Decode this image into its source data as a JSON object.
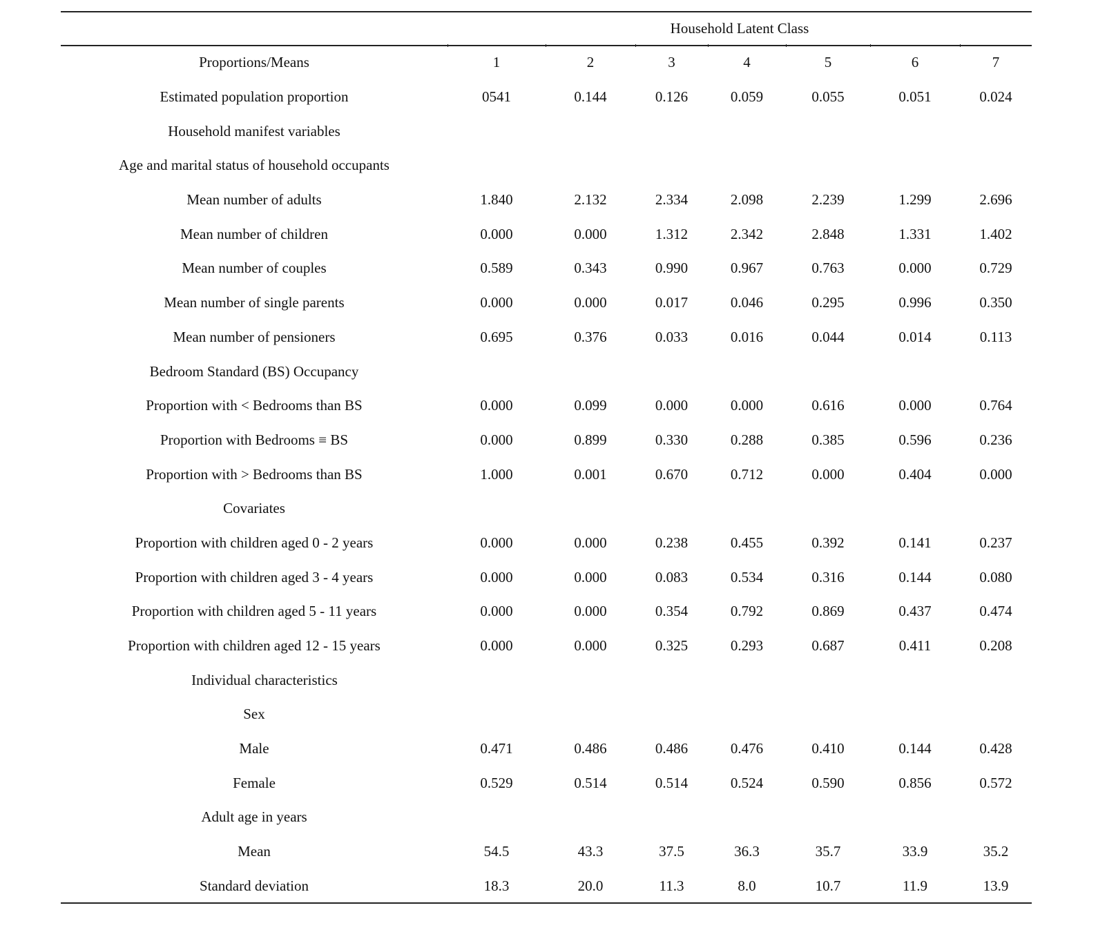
{
  "table": {
    "spanner": "Household Latent Class",
    "rows": [
      {
        "label": "Proportions/Means",
        "values": [
          "1",
          "2",
          "3",
          "4",
          "5",
          "6",
          "7"
        ]
      },
      {
        "label": "Estimated population proportion",
        "values": [
          "0541",
          "0.144",
          "0.126",
          "0.059",
          "0.055",
          "0.051",
          "0.024"
        ]
      },
      {
        "label": "Household manifest variables",
        "values": []
      },
      {
        "label": "Age and marital status of household occupants",
        "values": []
      },
      {
        "label": "Mean number of adults",
        "values": [
          "1.840",
          "2.132",
          "2.334",
          "2.098",
          "2.239",
          "1.299",
          "2.696"
        ]
      },
      {
        "label": "Mean number of children",
        "values": [
          "0.000",
          "0.000",
          "1.312",
          "2.342",
          "2.848",
          "1.331",
          "1.402"
        ]
      },
      {
        "label": "Mean number of couples",
        "values": [
          "0.589",
          "0.343",
          "0.990",
          "0.967",
          "0.763",
          "0.000",
          "0.729"
        ]
      },
      {
        "label": "Mean number of single parents",
        "values": [
          "0.000",
          "0.000",
          "0.017",
          "0.046",
          "0.295",
          "0.996",
          "0.350"
        ]
      },
      {
        "label": "Mean number of pensioners",
        "values": [
          "0.695",
          "0.376",
          "0.033",
          "0.016",
          "0.044",
          "0.014",
          "0.113"
        ]
      },
      {
        "label": "Bedroom Standard (BS) Occupancy",
        "values": []
      },
      {
        "label": "Proportion with < Bedrooms than BS",
        "values": [
          "0.000",
          "0.099",
          "0.000",
          "0.000",
          "0.616",
          "0.000",
          "0.764"
        ]
      },
      {
        "label": "Proportion with Bedrooms ≡ BS",
        "values": [
          "0.000",
          "0.899",
          "0.330",
          "0.288",
          "0.385",
          "0.596",
          "0.236"
        ]
      },
      {
        "label": "Proportion with > Bedrooms than BS",
        "values": [
          "1.000",
          "0.001",
          "0.670",
          "0.712",
          "0.000",
          "0.404",
          "0.000"
        ]
      },
      {
        "label": "Covariates",
        "values": []
      },
      {
        "label": "Proportion with children aged 0 - 2 years",
        "values": [
          "0.000",
          "0.000",
          "0.238",
          "0.455",
          "0.392",
          "0.141",
          "0.237"
        ]
      },
      {
        "label": "Proportion with children aged 3 - 4 years",
        "values": [
          "0.000",
          "0.000",
          "0.083",
          "0.534",
          "0.316",
          "0.144",
          "0.080"
        ]
      },
      {
        "label": "Proportion with children aged 5 - 11 years",
        "values": [
          "0.000",
          "0.000",
          "0.354",
          "0.792",
          "0.869",
          "0.437",
          "0.474"
        ]
      },
      {
        "label": "Proportion with children aged 12 - 15 years",
        "values": [
          "0.000",
          "0.000",
          "0.325",
          "0.293",
          "0.687",
          "0.411",
          "0.208"
        ]
      },
      {
        "label": "Individual characteristics",
        "values": [],
        "indent": true
      },
      {
        "label": "Sex",
        "values": []
      },
      {
        "label": "Male",
        "values": [
          "0.471",
          "0.486",
          "0.486",
          "0.476",
          "0.410",
          "0.144",
          "0.428"
        ]
      },
      {
        "label": "Female",
        "values": [
          "0.529",
          "0.514",
          "0.514",
          "0.524",
          "0.590",
          "0.856",
          "0.572"
        ]
      },
      {
        "label": "Adult age in years",
        "values": []
      },
      {
        "label": "Mean",
        "values": [
          "54.5",
          "43.3",
          "37.5",
          "36.3",
          "35.7",
          "33.9",
          "35.2"
        ]
      },
      {
        "label": "Standard deviation",
        "values": [
          "18.3",
          "20.0",
          "11.3",
          "8.0",
          "10.7",
          "11.9",
          "13.9"
        ]
      }
    ]
  }
}
